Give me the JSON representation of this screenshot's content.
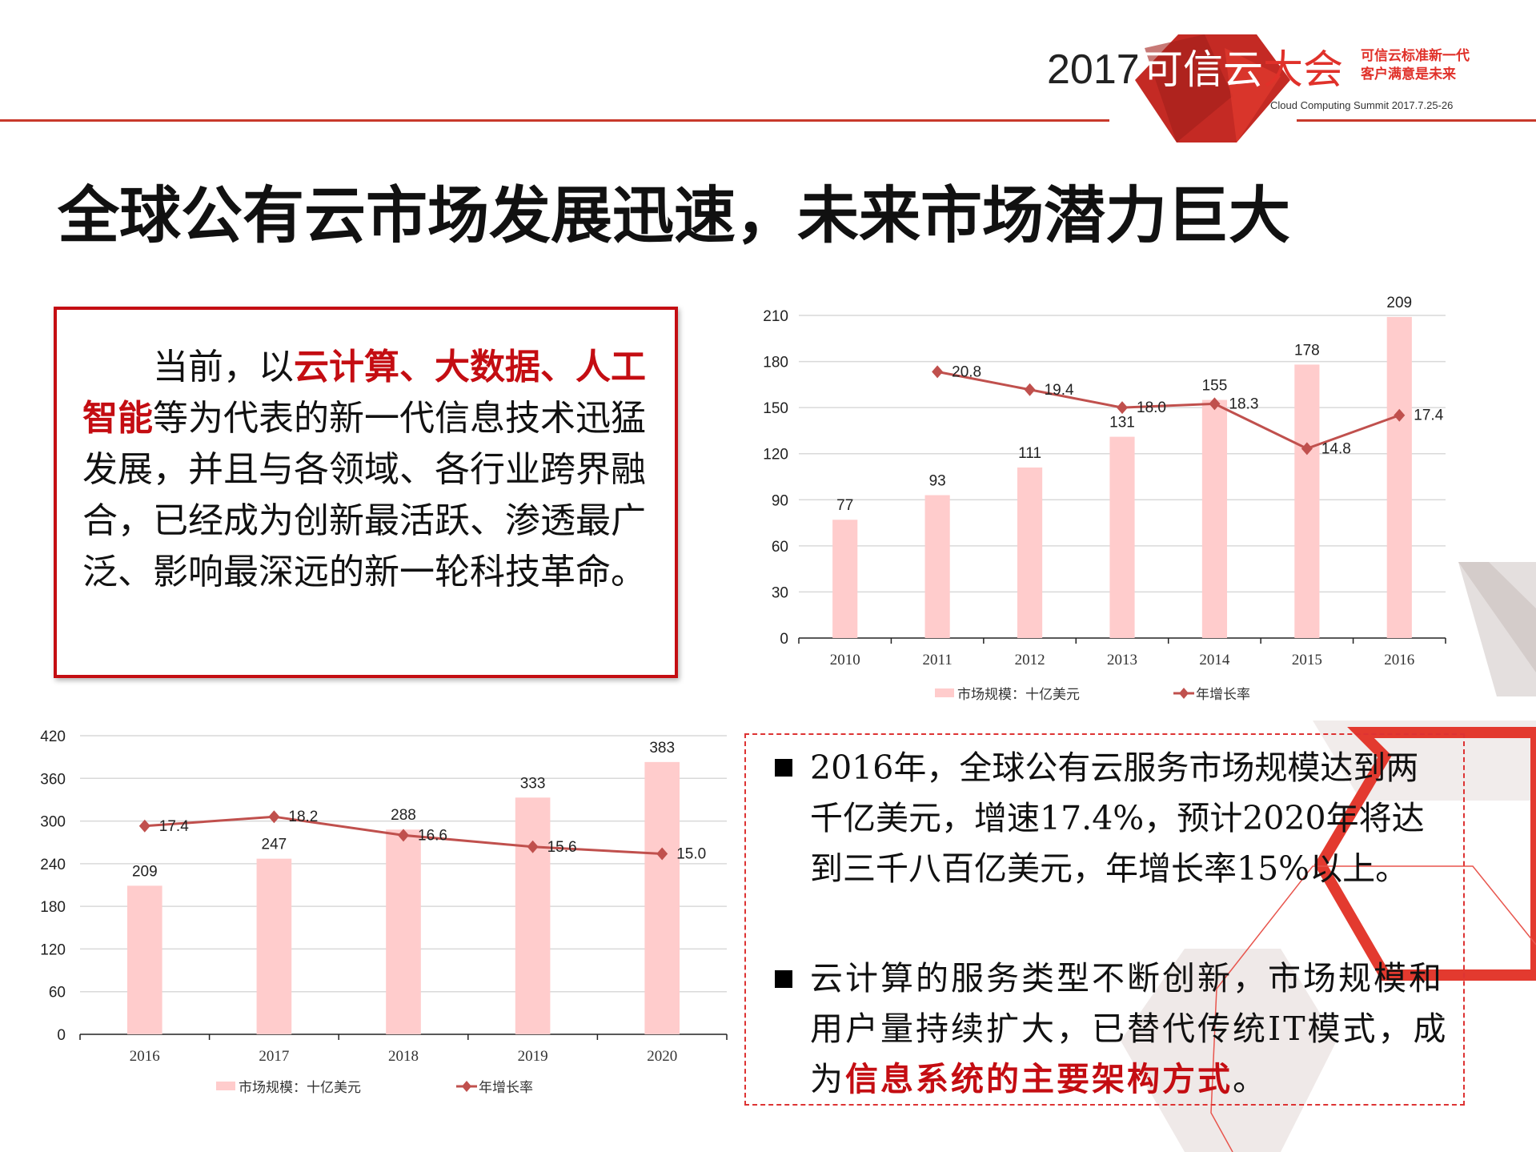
{
  "header": {
    "logo_year": "2017",
    "logo_name_white": "可信云",
    "logo_name_red": "大会",
    "slogan_line1": "可信云标准新一代",
    "slogan_line2": "客户满意是未来",
    "english_name": "Cloud Computing Summit 2017.7.25-26",
    "accent_color": "#c8392b"
  },
  "title": "全球公有云市场发展迅速，未来市场潜力巨大",
  "left_box": {
    "segments": [
      {
        "text": "当前，以",
        "highlight": false
      },
      {
        "text": "云计算、大数据、人工智能",
        "highlight": true
      },
      {
        "text": "等为代表的新一代信息技术迅猛发展，并且与各领域、各行业跨界融合，已经成为创新最活跃、渗透最广泛、影响最深远的新一轮科技革命。",
        "highlight": false
      }
    ],
    "border_color": "#c40d12"
  },
  "right_box": {
    "bullet1": "2016年，全球公有云服务市场规模达到两千亿美元，增速17.4%，预计2020年将达到三千八百亿美元，年增长率15%以上。",
    "bullet2_plain": "云计算的服务类型不断创新，市场规模和用户量持续扩大，已替代传统IT模式，成为",
    "bullet2_highlight": "信息系统的主要架构方式",
    "bullet2_end": "。"
  },
  "chart_data": [
    {
      "type": "bar",
      "categories": [
        "2010",
        "2011",
        "2012",
        "2013",
        "2014",
        "2015",
        "2016"
      ],
      "series": [
        {
          "name": "市场规模：十亿美元",
          "type": "bar",
          "values": [
            77,
            93,
            111,
            131,
            155,
            178,
            209
          ],
          "color": "#ffcccc"
        },
        {
          "name": "年增长率",
          "type": "line",
          "values": [
            null,
            20.8,
            19.4,
            18.0,
            18.3,
            14.8,
            17.4
          ],
          "color": "#c0504d",
          "marker": "diamond"
        }
      ],
      "yticks": [
        0,
        30,
        60,
        90,
        120,
        150,
        180,
        210
      ],
      "ylim": [
        0,
        210
      ],
      "secondary_ylim": [
        0,
        25.2
      ],
      "grid": true,
      "legend": "bottom"
    },
    {
      "type": "bar",
      "categories": [
        "2016",
        "2017",
        "2018",
        "2019",
        "2020"
      ],
      "series": [
        {
          "name": "市场规模：十亿美元",
          "type": "bar",
          "values": [
            209,
            247,
            288,
            333,
            383
          ],
          "color": "#ffcccc"
        },
        {
          "name": "年增长率",
          "type": "line",
          "values": [
            17.4,
            18.2,
            16.6,
            15.6,
            15.0
          ],
          "color": "#c0504d",
          "marker": "diamond"
        }
      ],
      "yticks": [
        0,
        60,
        120,
        180,
        240,
        300,
        360,
        420
      ],
      "ylim": [
        0,
        420
      ],
      "secondary_ylim": [
        -0.6,
        25.2
      ],
      "grid": true,
      "legend": "bottom"
    }
  ]
}
